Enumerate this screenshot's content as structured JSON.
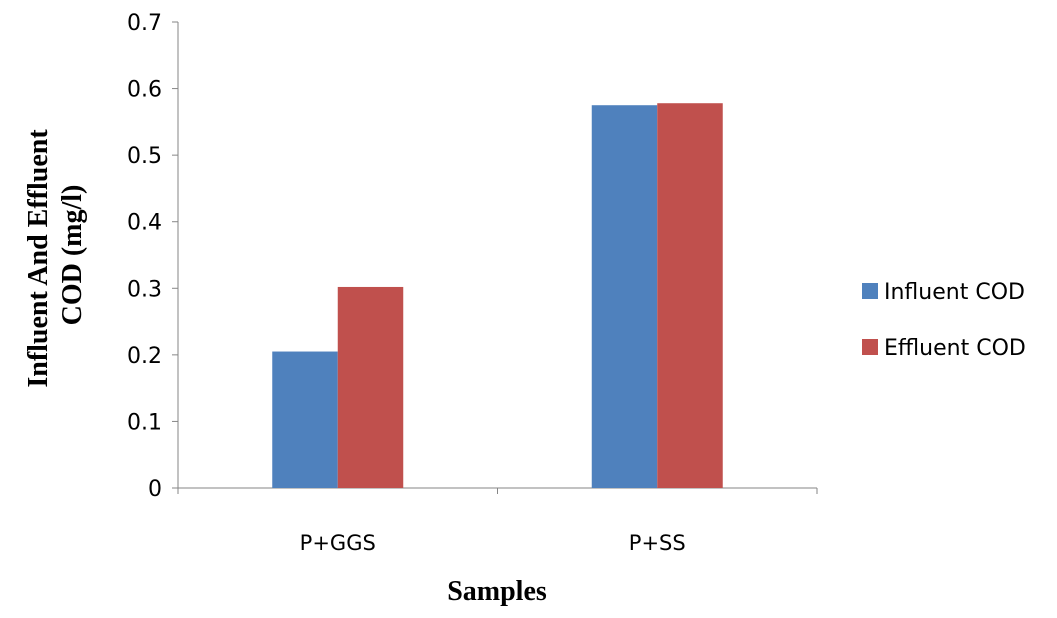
{
  "chart_data": {
    "type": "bar",
    "title": "",
    "xlabel": "Samples",
    "ylabel": "Influent And Effluent COD (mg/l)",
    "ylabel_lines": [
      "Influent And Effluent",
      "COD (mg/l)"
    ],
    "categories": [
      "P+GGS",
      "P+SS"
    ],
    "series": [
      {
        "name": "Influent COD",
        "color": "#4F81BD",
        "values": [
          0.205,
          0.575
        ]
      },
      {
        "name": "Effluent COD",
        "color": "#C0504D",
        "values": [
          0.302,
          0.578
        ]
      }
    ],
    "ylim": [
      0,
      0.7
    ],
    "yticks": [
      "0",
      "0.1",
      "0.2",
      "0.3",
      "0.4",
      "0.5",
      "0.6",
      "0.7"
    ],
    "grid": false,
    "legend_position": "right"
  }
}
